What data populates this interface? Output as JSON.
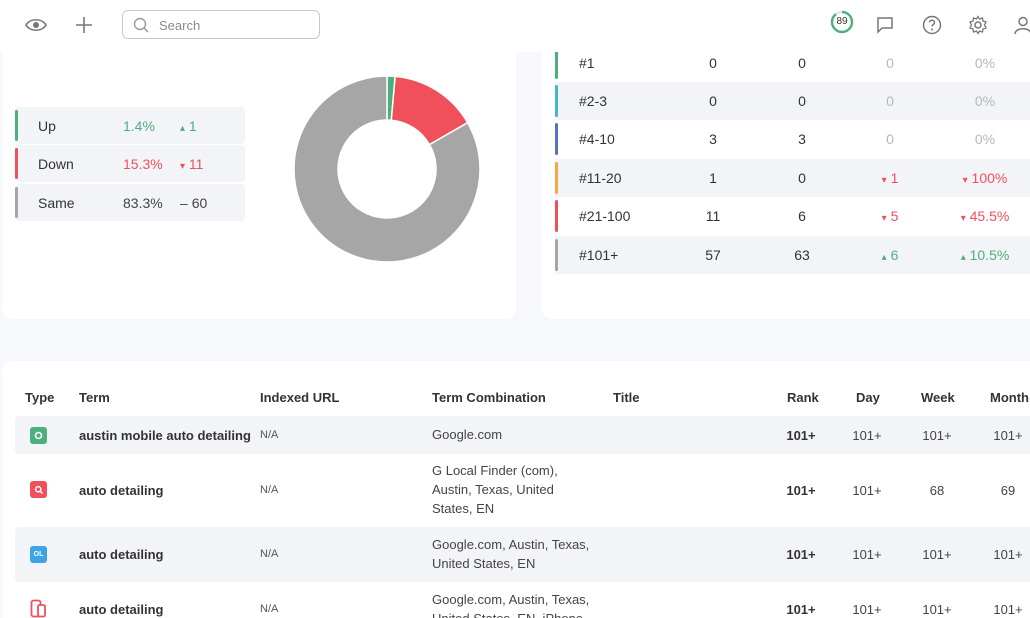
{
  "search": {
    "placeholder": "Search"
  },
  "header": {
    "score": "89"
  },
  "colors": {
    "up": "#4caf7d",
    "down": "#f0505c",
    "same": "#a6a6a6",
    "accent": "#4caf7d"
  },
  "movement": {
    "rows": [
      {
        "label": "Up",
        "pct": "1.4%",
        "arrow": "▴",
        "delta": "1",
        "color": "#4caf7d"
      },
      {
        "label": "Down",
        "pct": "15.3%",
        "arrow": "▾",
        "delta": "11",
        "color": "#f0505c"
      },
      {
        "label": "Same",
        "pct": "83.3%",
        "arrow": "‒",
        "delta": "60",
        "color": "#a6a6a6"
      }
    ],
    "chart_data": {
      "type": "pie",
      "categories": [
        "Up",
        "Down",
        "Same"
      ],
      "values": [
        1.4,
        15.3,
        83.3
      ],
      "colors": [
        "#4caf7d",
        "#f0505c",
        "#a6a6a6"
      ]
    }
  },
  "rank_dist": {
    "rows": [
      {
        "label": "#1",
        "a": "0",
        "b": "0",
        "c": "0",
        "d": "0%",
        "trend": "none",
        "bar": "#4caf7d"
      },
      {
        "label": "#2-3",
        "a": "0",
        "b": "0",
        "c": "0",
        "d": "0%",
        "trend": "none",
        "bar": "#46b6c9"
      },
      {
        "label": "#4-10",
        "a": "3",
        "b": "3",
        "c": "0",
        "d": "0%",
        "trend": "none",
        "bar": "#5b6fc2"
      },
      {
        "label": "#11-20",
        "a": "1",
        "b": "0",
        "c": "1",
        "d": "100%",
        "trend": "down",
        "bar": "#f2a74b"
      },
      {
        "label": "#21-100",
        "a": "11",
        "b": "6",
        "c": "5",
        "d": "45.5%",
        "trend": "down",
        "bar": "#f0505c"
      },
      {
        "label": "#101+",
        "a": "57",
        "b": "63",
        "c": "6",
        "d": "10.5%",
        "trend": "up",
        "bar": "#a6a6a6"
      }
    ]
  },
  "keywords": {
    "headers": {
      "type": "Type",
      "term": "Term",
      "url": "Indexed URL",
      "combination": "Term Combination",
      "title": "Title",
      "rank": "Rank",
      "day": "Day",
      "week": "Week",
      "month": "Month"
    },
    "rows": [
      {
        "type_icon": "google-icon",
        "type_color": "#4caf7d",
        "term": "austin mobile auto detailing",
        "url": "N/A",
        "combination": "Google.com",
        "rank": "101+",
        "day": "101+",
        "week": "101+",
        "month": "101+"
      },
      {
        "type_icon": "local-finder-icon",
        "type_color": "#f0505c",
        "term": "auto detailing",
        "url": "N/A",
        "combination": "G Local Finder (com), Austin, Texas, United States, EN",
        "rank": "101+",
        "day": "101+",
        "week": "68",
        "month": "69"
      },
      {
        "type_icon": "google-local-icon",
        "type_color": "#3fa3e8",
        "term": "auto detailing",
        "url": "N/A",
        "combination": "Google.com, Austin, Texas, United States, EN",
        "rank": "101+",
        "day": "101+",
        "week": "101+",
        "month": "101+"
      },
      {
        "type_icon": "mobile-icon",
        "type_color": "#f0505c",
        "term": "auto detailing",
        "url": "N/A",
        "combination": "Google.com, Austin, Texas, United States, EN, iPhone",
        "rank": "101+",
        "day": "101+",
        "week": "101+",
        "month": "101+"
      }
    ]
  }
}
